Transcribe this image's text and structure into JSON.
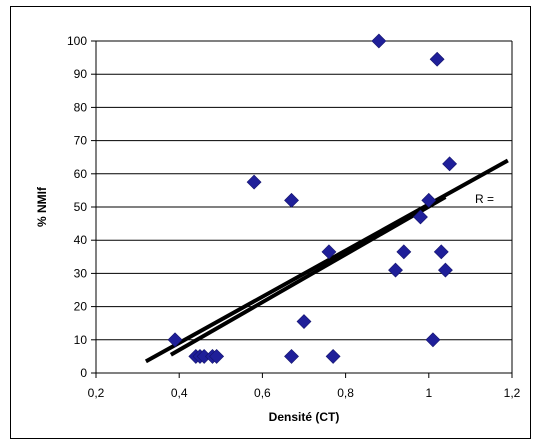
{
  "chart_data": {
    "type": "scatter",
    "title": "",
    "xlabel": "Densité (CT)",
    "ylabel": "% NMIf",
    "xlim": [
      0.2,
      1.2
    ],
    "ylim": [
      0,
      100
    ],
    "x_ticks": [
      "0,2",
      "0,4",
      "0,6",
      "0,8",
      "1",
      "1,2"
    ],
    "y_ticks": [
      "0",
      "10",
      "20",
      "30",
      "40",
      "50",
      "60",
      "70",
      "80",
      "90",
      "100"
    ],
    "grid": true,
    "legend": "none",
    "marker_color": "#1F1F99",
    "annotation": "R =",
    "series": [
      {
        "points": [
          [
            0.39,
            10
          ],
          [
            0.44,
            5
          ],
          [
            0.45,
            5
          ],
          [
            0.46,
            5
          ],
          [
            0.48,
            5
          ],
          [
            0.49,
            5
          ],
          [
            0.58,
            57.5
          ],
          [
            0.67,
            52
          ],
          [
            0.67,
            5
          ],
          [
            0.7,
            15.5
          ],
          [
            0.76,
            36.5
          ],
          [
            0.77,
            5
          ],
          [
            0.88,
            100
          ],
          [
            0.92,
            31
          ],
          [
            0.94,
            36.5
          ],
          [
            0.98,
            47
          ],
          [
            1.0,
            52
          ],
          [
            1.01,
            10
          ],
          [
            1.02,
            94.5
          ],
          [
            1.03,
            36.5
          ],
          [
            1.04,
            31
          ],
          [
            1.05,
            63
          ]
        ]
      }
    ],
    "trendlines": [
      {
        "x": [
          0.32,
          1.19
        ],
        "y": [
          3.5,
          64
        ]
      },
      {
        "x": [
          0.38,
          1.04
        ],
        "y": [
          5.5,
          53
        ]
      }
    ]
  }
}
